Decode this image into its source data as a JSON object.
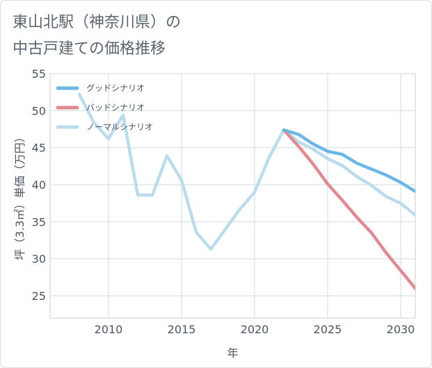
{
  "title_lines": [
    "東山北駅（神奈川県）の",
    "中古戸建ての価格推移"
  ],
  "chart_data": {
    "type": "line",
    "title": "東山北駅（神奈川県）の中古戸建ての価格推移",
    "xlabel": "年",
    "ylabel": "坪（3.3㎡）単価（万円）",
    "xlim": [
      2006,
      2031
    ],
    "ylim": [
      22,
      55
    ],
    "xticks": [
      2010,
      2015,
      2020,
      2025,
      2030
    ],
    "yticks": [
      25,
      30,
      35,
      40,
      45,
      50,
      55
    ],
    "grid": true,
    "legend_position": "top-left",
    "series": [
      {
        "name": "グッドシナリオ",
        "color": "#6bb7e8",
        "x": [
          2022,
          2023,
          2024,
          2025,
          2026,
          2027,
          2028,
          2029,
          2030,
          2031
        ],
        "values": [
          47.4,
          46.8,
          45.5,
          44.5,
          44.1,
          42.9,
          42.1,
          41.3,
          40.3,
          39.1
        ]
      },
      {
        "name": "バッドシナリオ",
        "color": "#e08a93",
        "x": [
          2022,
          2023,
          2024,
          2025,
          2026,
          2027,
          2028,
          2029,
          2030,
          2031
        ],
        "values": [
          47.4,
          45.2,
          42.8,
          40.1,
          37.9,
          35.6,
          33.5,
          30.8,
          28.4,
          26.0
        ]
      },
      {
        "name": "ノーマルシナリオ",
        "color": "#bcdcec",
        "x": [
          2008,
          2009,
          2010,
          2011,
          2012,
          2013,
          2014,
          2015,
          2016,
          2017,
          2018,
          2019,
          2020,
          2021,
          2022,
          2023,
          2024,
          2025,
          2026,
          2027,
          2028,
          2029,
          2030,
          2031
        ],
        "values": [
          52.2,
          48.4,
          46.2,
          49.4,
          38.6,
          38.6,
          43.9,
          40.6,
          33.6,
          31.3,
          34.0,
          36.7,
          39.0,
          43.7,
          47.4,
          45.8,
          44.8,
          43.5,
          42.6,
          41.1,
          39.9,
          38.4,
          37.5,
          35.9
        ]
      }
    ]
  }
}
